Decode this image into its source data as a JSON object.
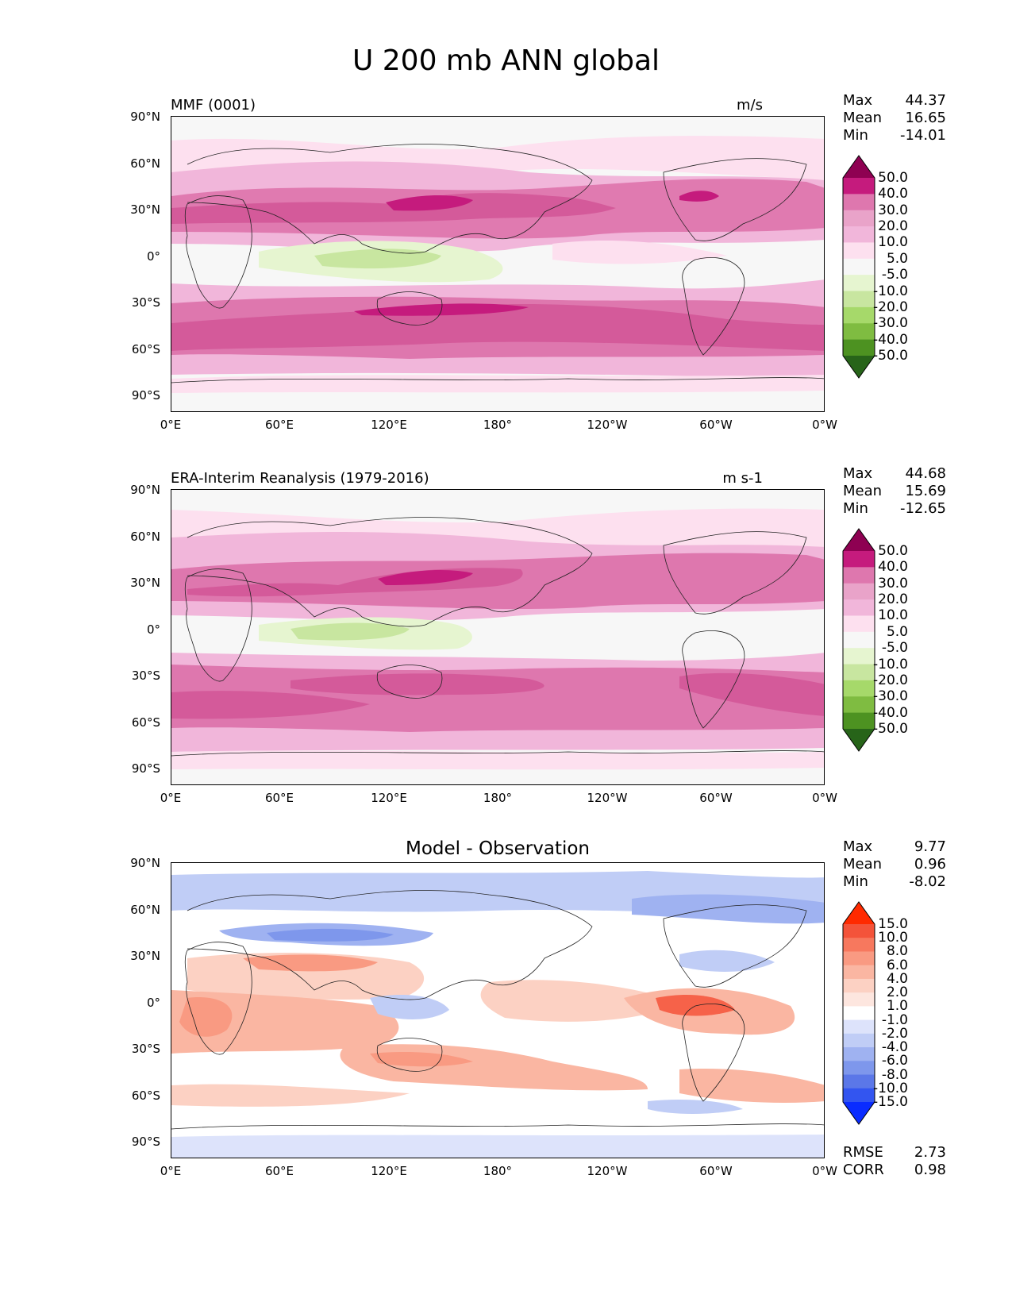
{
  "figure_title": "U 200 mb ANN global",
  "axes": {
    "lat_labels": [
      "90°N",
      "60°N",
      "30°N",
      "0°",
      "30°S",
      "60°S",
      "90°S"
    ],
    "lon_labels": [
      "0°E",
      "60°E",
      "120°E",
      "180°",
      "120°W",
      "60°W",
      "0°W"
    ]
  },
  "panels": [
    {
      "title_left": "MMF (0001)",
      "title_right": "m/s",
      "title_center": "",
      "stats": [
        {
          "label": "Max",
          "value": "44.37"
        },
        {
          "label": "Mean",
          "value": "16.65"
        },
        {
          "label": "Min",
          "value": "-14.01"
        }
      ]
    },
    {
      "title_left": "ERA-Interim Reanalysis (1979-2016)",
      "title_right": "m s-1",
      "title_center": "",
      "stats": [
        {
          "label": "Max",
          "value": "44.68"
        },
        {
          "label": "Mean",
          "value": "15.69"
        },
        {
          "label": "Min",
          "value": "-12.65"
        }
      ]
    },
    {
      "title_left": "",
      "title_right": "",
      "title_center": "Model - Observation",
      "stats": [
        {
          "label": "Max",
          "value": "9.77"
        },
        {
          "label": "Mean",
          "value": "0.96"
        },
        {
          "label": "Min",
          "value": "-8.02"
        }
      ]
    }
  ],
  "colorbar_fields": {
    "labels": [
      "50.0",
      "40.0",
      "30.0",
      "20.0",
      "10.0",
      "5.0",
      "-5.0",
      "-10.0",
      "-20.0",
      "-30.0",
      "-40.0",
      "-50.0"
    ],
    "colors": [
      "#8e0152",
      "#c51b7d",
      "#de77ae",
      "#e9a3c9",
      "#f1b6da",
      "#fde0ef",
      "#f7f7f7",
      "#e6f5d0",
      "#c8e6a0",
      "#a6d96a",
      "#7fbc41",
      "#4d9221",
      "#276419"
    ]
  },
  "colorbar_diff": {
    "labels": [
      "15.0",
      "10.0",
      "8.0",
      "6.0",
      "4.0",
      "2.0",
      "1.0",
      "-1.0",
      "-2.0",
      "-4.0",
      "-6.0",
      "-8.0",
      "-10.0",
      "-15.0"
    ],
    "colors": [
      "#ff2a00",
      "#f4533a",
      "#f7785e",
      "#f99a82",
      "#fab6a2",
      "#fcd1c3",
      "#fde6df",
      "#ffffff",
      "#dde3fb",
      "#c0cdf6",
      "#9fb2f1",
      "#7e97ec",
      "#5b77e8",
      "#3355f0",
      "#0a2cff"
    ]
  },
  "bottom_stats": [
    {
      "label": "RMSE",
      "value": "2.73"
    },
    {
      "label": "CORR",
      "value": "0.98"
    }
  ],
  "map_data": {
    "projection": "plate-carree",
    "lon_range": [
      0,
      360
    ],
    "lat_range": [
      -90,
      90
    ],
    "variable": "U 200 mb",
    "season": "ANN"
  }
}
